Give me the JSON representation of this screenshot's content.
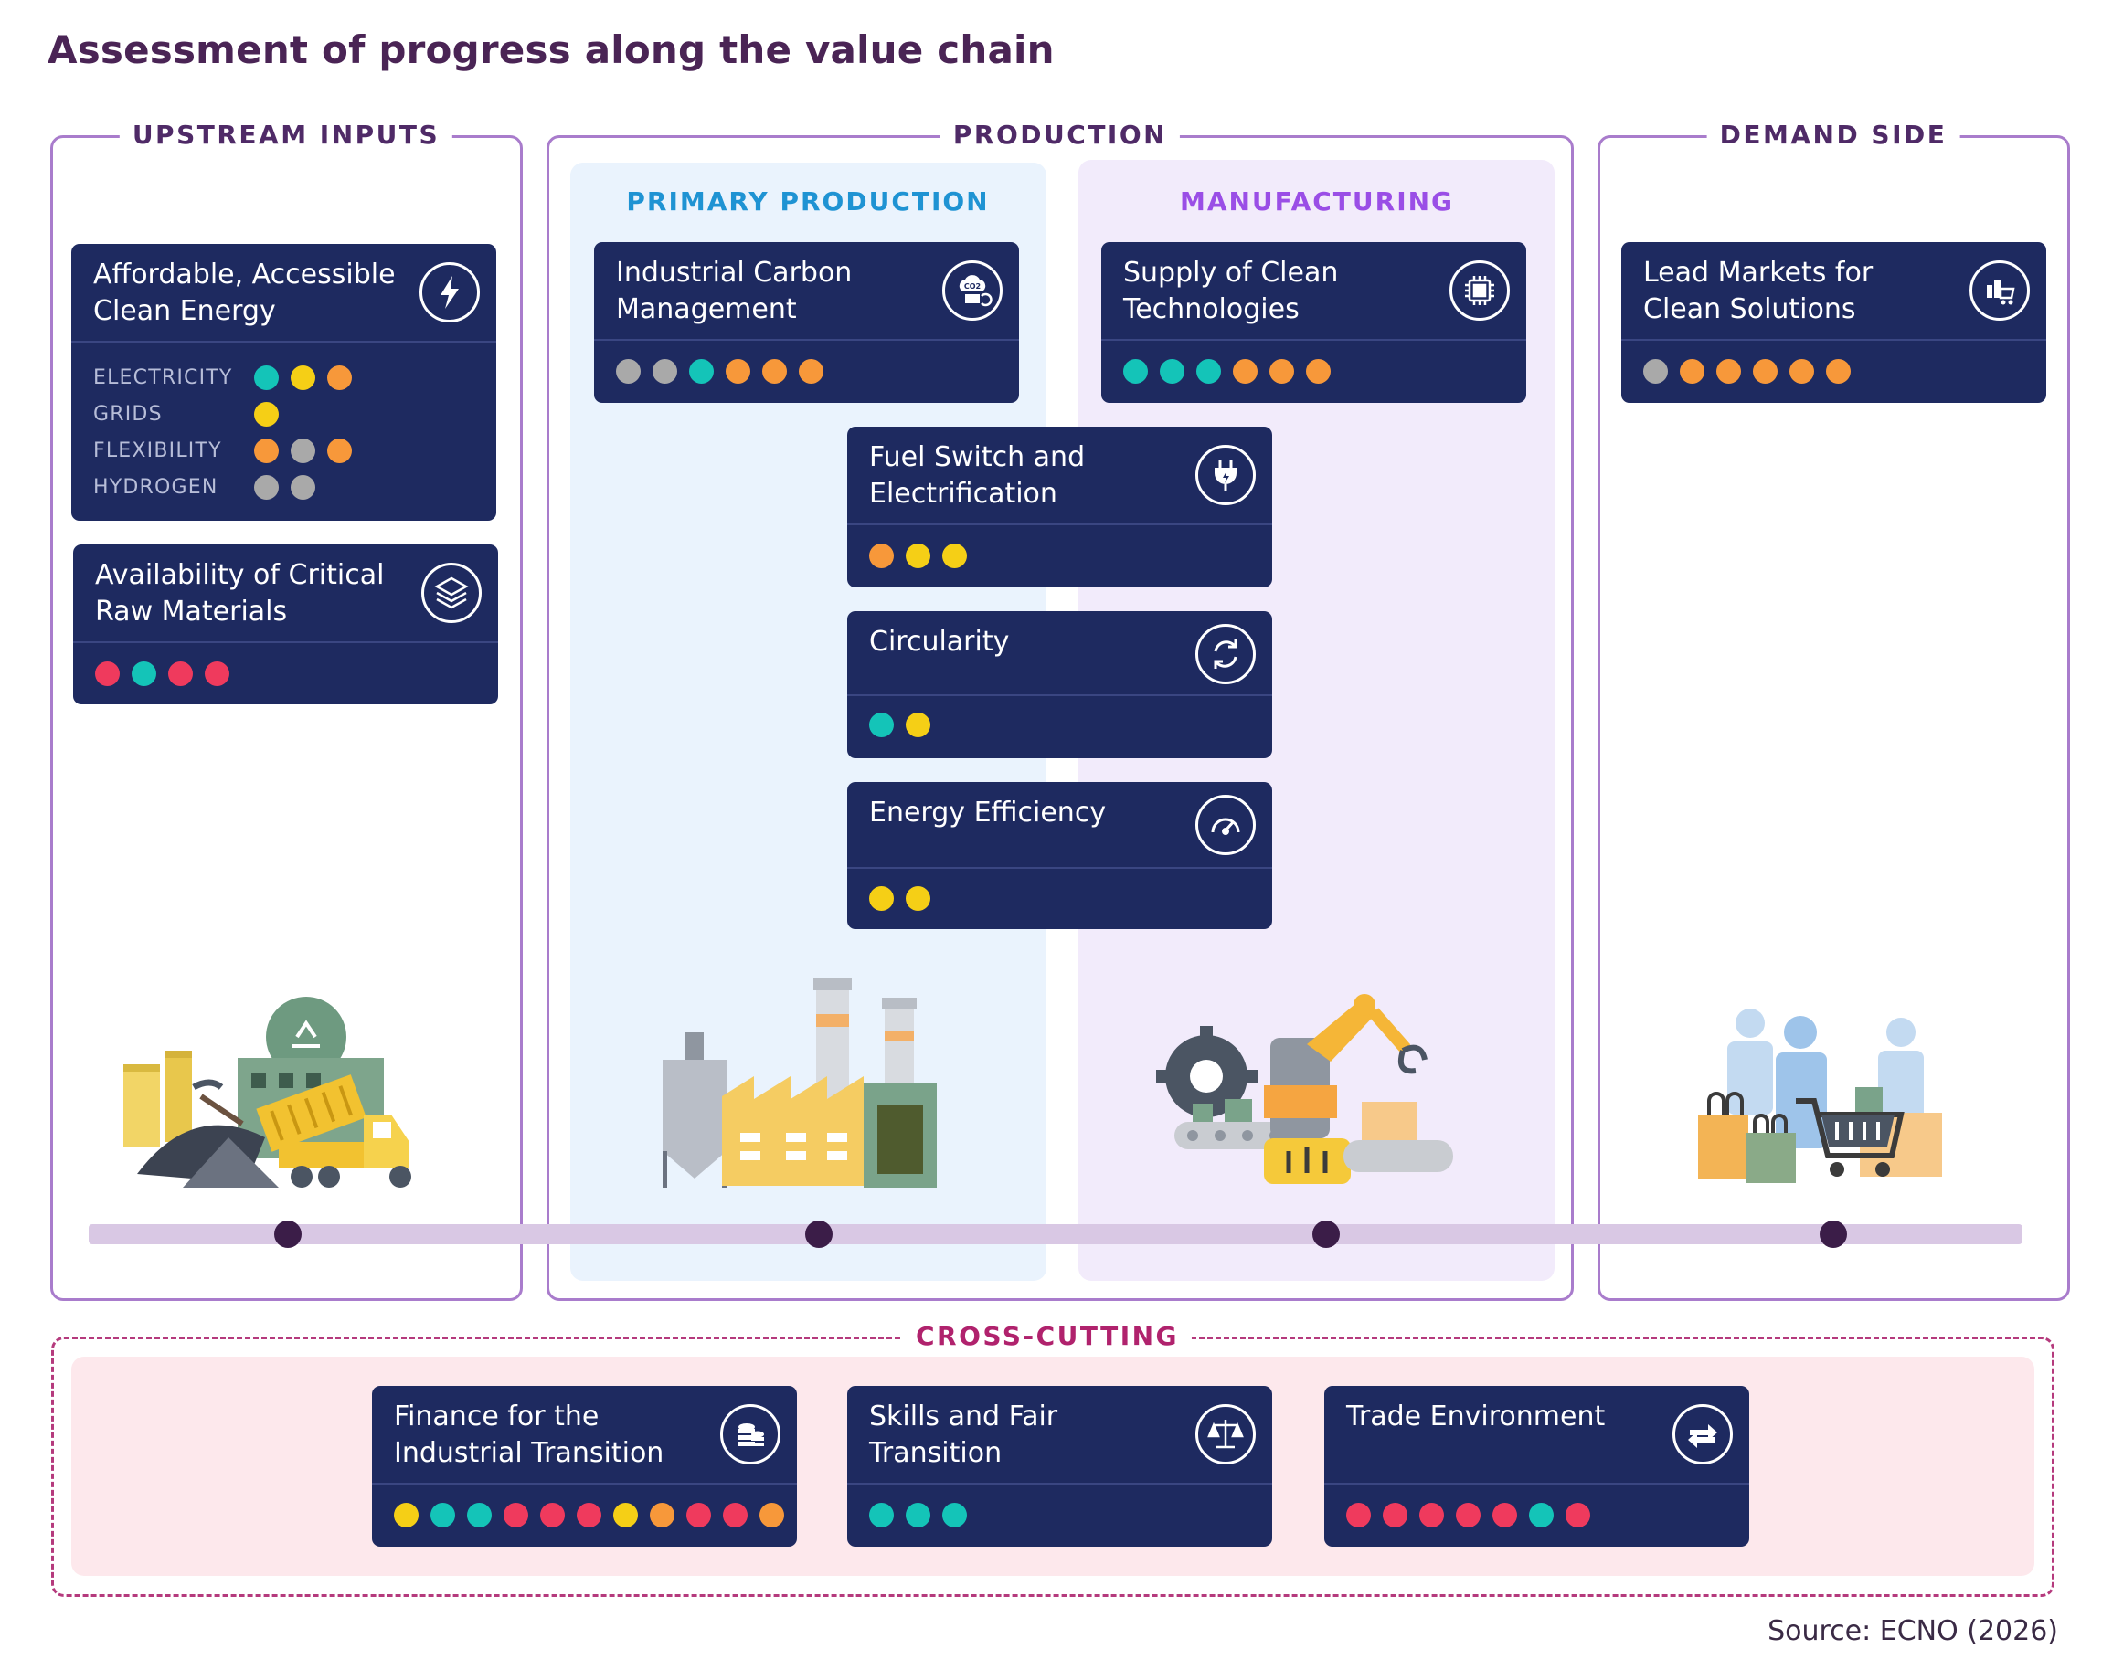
{
  "title": "Assessment of progress along the value chain",
  "sections": {
    "upstream": "UPSTREAM INPUTS",
    "production": "PRODUCTION",
    "primary": "PRIMARY PRODUCTION",
    "manufacturing": "MANUFACTURING",
    "demand": "DEMAND SIDE",
    "cross": "CROSS-CUTTING"
  },
  "colors": {
    "grey": "#a9a9a9",
    "teal": "#14c4b8",
    "yellow": "#f5cf16",
    "orange": "#f7983a",
    "red": "#ef3a5d"
  },
  "cards": {
    "clean_energy": {
      "title": "Affordable, Accessible Clean Energy",
      "icon": "lightning-icon",
      "rows": [
        {
          "label": "ELECTRICITY",
          "dots": [
            "teal",
            "yellow",
            "orange"
          ]
        },
        {
          "label": "GRIDS",
          "dots": [
            "yellow"
          ]
        },
        {
          "label": "FLEXIBILITY",
          "dots": [
            "orange",
            "grey",
            "orange"
          ]
        },
        {
          "label": "HYDROGEN",
          "dots": [
            "grey",
            "grey"
          ]
        }
      ]
    },
    "raw_materials": {
      "title": "Availability of Critical Raw Materials",
      "icon": "layers-icon",
      "dots": [
        "red",
        "teal",
        "red",
        "red"
      ]
    },
    "carbon_mgmt": {
      "title": "Industrial Carbon Management",
      "icon": "co2-icon",
      "dots": [
        "grey",
        "grey",
        "teal",
        "orange",
        "orange",
        "orange"
      ]
    },
    "clean_tech": {
      "title": "Supply of Clean Technologies",
      "icon": "chip-icon",
      "dots": [
        "teal",
        "teal",
        "teal",
        "orange",
        "orange",
        "orange"
      ]
    },
    "lead_markets": {
      "title": "Lead Markets for Clean Solutions",
      "icon": "shopping-cart-icon",
      "dots": [
        "grey",
        "orange",
        "orange",
        "orange",
        "orange",
        "orange"
      ]
    },
    "fuel_switch": {
      "title": "Fuel Switch and Electrification",
      "icon": "plug-icon",
      "dots": [
        "orange",
        "yellow",
        "yellow"
      ]
    },
    "circularity": {
      "title": "Circularity",
      "icon": "cycle-arrows-icon",
      "dots": [
        "teal",
        "yellow"
      ]
    },
    "efficiency": {
      "title": "Energy Efficiency",
      "icon": "gauge-icon",
      "dots": [
        "yellow",
        "yellow"
      ]
    },
    "finance": {
      "title": "Finance for the Industrial Transition",
      "icon": "coins-icon",
      "dots": [
        "yellow",
        "teal",
        "teal",
        "red",
        "red",
        "red",
        "yellow",
        "orange",
        "red",
        "red",
        "orange"
      ]
    },
    "skills": {
      "title": "Skills and Fair Transition",
      "icon": "scales-icon",
      "dots": [
        "teal",
        "teal",
        "teal"
      ]
    },
    "trade": {
      "title": "Trade Environment",
      "icon": "exchange-arrows-icon",
      "dots": [
        "red",
        "red",
        "red",
        "red",
        "red",
        "teal",
        "red"
      ]
    }
  },
  "source": "Source: ECNO (2026)"
}
